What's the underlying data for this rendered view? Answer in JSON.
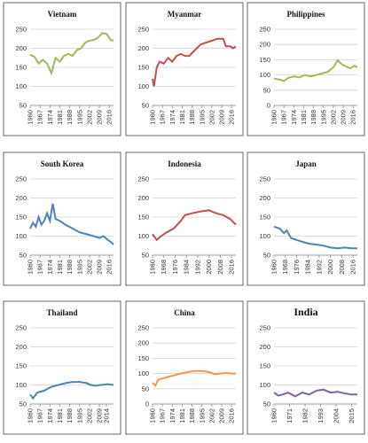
{
  "chart_data": [
    {
      "type": "line",
      "title": "Vietnam",
      "color": "#9bbb59",
      "grid": true,
      "x": [
        1960,
        1963,
        1966,
        1969,
        1972,
        1975,
        1978,
        1981,
        1984,
        1987,
        1990,
        1993,
        1996,
        1999,
        2002,
        2005,
        2008,
        2011,
        2014,
        2017,
        2019
      ],
      "values": [
        183,
        178,
        160,
        170,
        160,
        135,
        175,
        165,
        180,
        185,
        180,
        195,
        200,
        215,
        220,
        222,
        228,
        240,
        238,
        222,
        220
      ],
      "xlim": [
        1960,
        2019
      ],
      "xticks": [
        1960,
        1967,
        1974,
        1981,
        1988,
        1995,
        2002,
        2009,
        2016
      ],
      "ylim": [
        50,
        250
      ],
      "yticks": [
        50,
        100,
        150,
        200,
        250
      ]
    },
    {
      "type": "line",
      "title": "Myanmar",
      "color": "#c0504d",
      "grid": true,
      "x": [
        1960,
        1961,
        1963,
        1965,
        1968,
        1971,
        1974,
        1977,
        1980,
        1983,
        1986,
        1990,
        1994,
        1998,
        2002,
        2006,
        2010,
        2012,
        2015,
        2017,
        2019
      ],
      "values": [
        120,
        100,
        150,
        165,
        160,
        175,
        165,
        180,
        185,
        180,
        180,
        195,
        210,
        215,
        220,
        225,
        225,
        205,
        205,
        200,
        205
      ],
      "xlim": [
        1960,
        2019
      ],
      "xticks": [
        1960,
        1967,
        1974,
        1981,
        1988,
        1995,
        2002,
        2009,
        2016
      ],
      "ylim": [
        50,
        250
      ],
      "yticks": [
        50,
        100,
        150,
        200,
        250
      ]
    },
    {
      "type": "line",
      "title": "Philippines",
      "color": "#9bbb59",
      "grid": true,
      "x": [
        1960,
        1964,
        1967,
        1970,
        1974,
        1978,
        1982,
        1986,
        1990,
        1994,
        1998,
        2002,
        2005,
        2008,
        2011,
        2014,
        2017,
        2019
      ],
      "values": [
        88,
        85,
        80,
        90,
        95,
        92,
        100,
        95,
        100,
        105,
        110,
        125,
        148,
        135,
        128,
        122,
        130,
        125
      ],
      "xlim": [
        1960,
        2019
      ],
      "xticks": [
        1960,
        1967,
        1974,
        1981,
        1988,
        1995,
        2002,
        2009,
        2016
      ],
      "ylim": [
        0,
        250
      ],
      "yticks": [
        0,
        50,
        100,
        150,
        200,
        250
      ]
    },
    {
      "type": "line",
      "title": "South Korea",
      "color": "#4f81bd",
      "grid": true,
      "x": [
        1960,
        1962,
        1964,
        1966,
        1968,
        1970,
        1972,
        1974,
        1976,
        1978,
        1981,
        1985,
        1990,
        1995,
        2000,
        2005,
        2009,
        2012,
        2015,
        2017,
        2019
      ],
      "values": [
        120,
        135,
        125,
        150,
        130,
        140,
        160,
        140,
        185,
        145,
        140,
        130,
        120,
        110,
        105,
        100,
        95,
        100,
        90,
        85,
        78
      ],
      "xlim": [
        1960,
        2019
      ],
      "xticks": [
        1960,
        1967,
        1974,
        1981,
        1988,
        1995,
        2002,
        2009,
        2016
      ],
      "ylim": [
        50,
        250
      ],
      "yticks": [
        50,
        100,
        150,
        200,
        250
      ]
    },
    {
      "type": "line",
      "title": "Indonesia",
      "color": "#c0504d",
      "grid": true,
      "x": [
        1960,
        1963,
        1966,
        1970,
        1975,
        1980,
        1983,
        1988,
        1994,
        2000,
        2005,
        2010,
        2015,
        2019
      ],
      "values": [
        105,
        90,
        100,
        110,
        120,
        140,
        155,
        160,
        165,
        168,
        160,
        155,
        145,
        130
      ],
      "xlim": [
        1960,
        2019
      ],
      "xticks": [
        1960,
        1968,
        1976,
        1984,
        1992,
        2000,
        2008,
        2016
      ],
      "ylim": [
        50,
        250
      ],
      "yticks": [
        50,
        100,
        150,
        200,
        250
      ]
    },
    {
      "type": "line",
      "title": "Japan",
      "color": "#4f81bd",
      "grid": true,
      "x": [
        1960,
        1964,
        1967,
        1969,
        1972,
        1976,
        1980,
        1985,
        1990,
        1995,
        2000,
        2005,
        2010,
        2015,
        2019
      ],
      "values": [
        125,
        120,
        108,
        115,
        95,
        90,
        85,
        80,
        78,
        75,
        70,
        68,
        70,
        68,
        68
      ],
      "xlim": [
        1960,
        2019
      ],
      "xticks": [
        1960,
        1968,
        1976,
        1984,
        1992,
        2000,
        2008,
        2016
      ],
      "ylim": [
        50,
        250
      ],
      "yticks": [
        50,
        100,
        150,
        200,
        250
      ]
    },
    {
      "type": "line",
      "title": "Thailand",
      "color": "#4f81bd",
      "grid": true,
      "x": [
        1960,
        1962,
        1965,
        1970,
        1975,
        1980,
        1985,
        1990,
        1995,
        2000,
        2003,
        2006,
        2010,
        2015,
        2019
      ],
      "values": [
        75,
        65,
        80,
        85,
        95,
        100,
        105,
        108,
        108,
        105,
        100,
        98,
        100,
        102,
        100
      ],
      "xlim": [
        1960,
        2019
      ],
      "xticks": [
        1960,
        1967,
        1974,
        1981,
        1988,
        1995,
        2002,
        2009,
        2014
      ],
      "ylim": [
        50,
        250
      ],
      "yticks": [
        50,
        100,
        150,
        200,
        250
      ]
    },
    {
      "type": "line",
      "title": "China",
      "color": "#f79646",
      "grid": true,
      "x": [
        1960,
        1962,
        1964,
        1968,
        1972,
        1976,
        1980,
        1985,
        1990,
        1995,
        2000,
        2004,
        2008,
        2012,
        2016,
        2019
      ],
      "values": [
        70,
        60,
        80,
        85,
        90,
        95,
        100,
        105,
        108,
        108,
        105,
        98,
        100,
        102,
        100,
        100
      ],
      "xlim": [
        1960,
        2019
      ],
      "xticks": [
        1960,
        1967,
        1974,
        1981,
        1988,
        1995,
        2002,
        2009,
        2016
      ],
      "ylim": [
        0,
        250
      ],
      "yticks": [
        0,
        50,
        100,
        150,
        200,
        250
      ]
    },
    {
      "type": "line",
      "title": "India",
      "color": "#8064a2",
      "grid": true,
      "x": [
        1960,
        1963,
        1966,
        1970,
        1975,
        1980,
        1985,
        1990,
        1995,
        2000,
        2005,
        2010,
        2015,
        2019
      ],
      "values": [
        80,
        72,
        75,
        80,
        70,
        80,
        75,
        85,
        88,
        80,
        82,
        78,
        75,
        75
      ],
      "xlim": [
        1960,
        2019
      ],
      "xticks": [
        1960,
        1971,
        1982,
        1993,
        2004,
        2015
      ],
      "ylim": [
        50,
        250
      ],
      "yticks": [
        50,
        100,
        150,
        200,
        250
      ]
    }
  ]
}
